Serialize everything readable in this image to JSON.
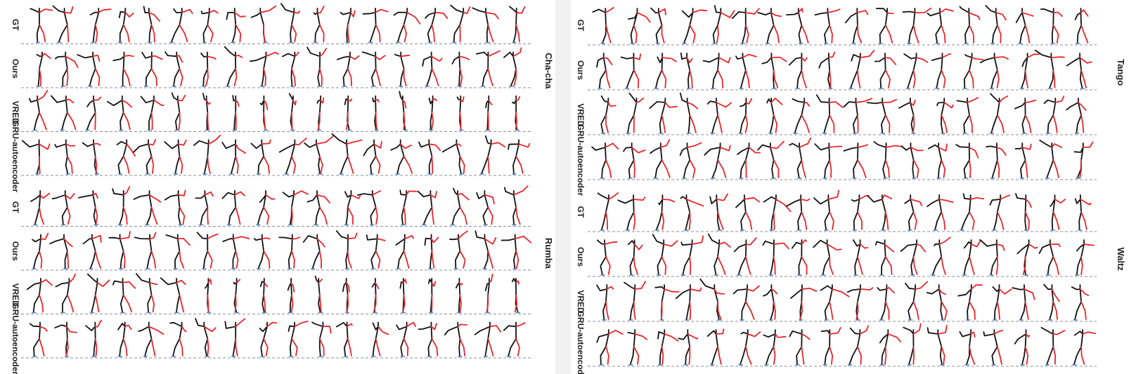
{
  "colors": {
    "left_side": "#111111",
    "right_side": "#e8262b",
    "foot_marker": "#4a7fc0",
    "baseline": "#8a8f96"
  },
  "panels": [
    {
      "dances": [
        {
          "name": "Cha-cha",
          "rows": [
            {
              "label": "GT"
            },
            {
              "label": "Ours"
            },
            {
              "label": "VRED"
            },
            {
              "label": "GRU-autoencoder"
            }
          ]
        },
        {
          "name": "Rumba",
          "rows": [
            {
              "label": "GT"
            },
            {
              "label": "Ours"
            },
            {
              "label": "VRED"
            },
            {
              "label": "GRU-autoencoder"
            }
          ]
        }
      ]
    },
    {
      "dances": [
        {
          "name": "Tango",
          "rows": [
            {
              "label": "GT"
            },
            {
              "label": "Ours"
            },
            {
              "label": "VRED"
            },
            {
              "label": "GRU-autoencoder"
            }
          ]
        },
        {
          "name": "Waltz",
          "rows": [
            {
              "label": "GT"
            },
            {
              "label": "Ours"
            },
            {
              "label": "VRED"
            },
            {
              "label": "GRU-autoencoder"
            }
          ]
        }
      ]
    }
  ],
  "frames_per_row": 18
}
